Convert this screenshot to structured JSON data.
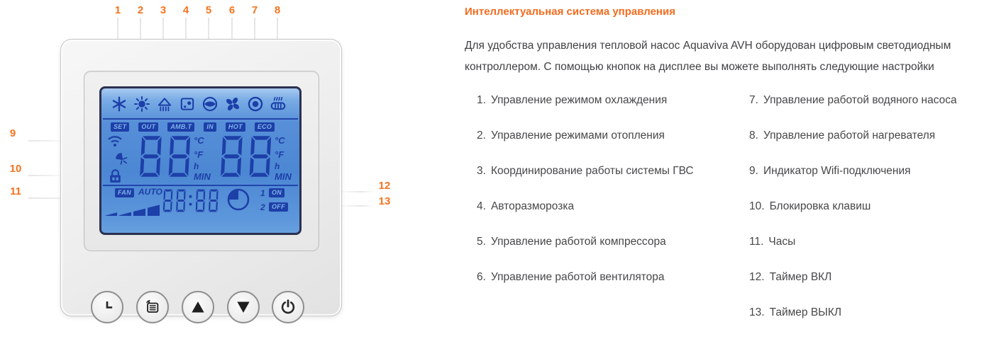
{
  "colors": {
    "accent": "#f4731f",
    "lcd_background": "#4c87d3",
    "lcd_segment": "#1d3fa8",
    "body_text": "#47474a"
  },
  "callouts": {
    "top": [
      "1",
      "2",
      "3",
      "4",
      "5",
      "6",
      "7",
      "8"
    ],
    "left": [
      "9",
      "10",
      "11"
    ],
    "right": [
      "12",
      "13"
    ]
  },
  "device": {
    "display": {
      "mode_icons": [
        "cooling-snowflake",
        "heating-sun",
        "hot-water-shower",
        "auto-defrost",
        "compressor",
        "fan",
        "water-pump",
        "heater"
      ],
      "status_labels": [
        "SET",
        "OUT",
        "AMB.T",
        "IN",
        "HOT",
        "ECO"
      ],
      "indicator_icons": [
        "wifi",
        "satellite-dish",
        "key-lock",
        "timer-clock"
      ],
      "left_value": "88",
      "right_value": "88",
      "left_units": [
        "°C",
        "°F",
        "h",
        "MIN"
      ],
      "right_units": [
        "°C",
        "°F",
        "h",
        "MIN"
      ],
      "fan_label": "FAN",
      "auto_label": "AUTO",
      "clock_value": "88:88",
      "timer_rows": [
        {
          "num": "1",
          "state": "ON"
        },
        {
          "num": "2",
          "state": "OFF"
        }
      ]
    },
    "buttons": [
      "clock",
      "mode",
      "up",
      "down",
      "power"
    ]
  },
  "content": {
    "heading": "Интеллектуальная система управления",
    "intro": "Для удобства управления тепловой насос Aquaviva AVH оборудован цифровым светодиодным контроллером. С помощью кнопок на дисплее вы можете выполнять следующие настройки",
    "features_left": [
      {
        "num": "1.",
        "text": "Управление режимом охлаждения"
      },
      {
        "num": "2.",
        "text": "Управление режимами отопления"
      },
      {
        "num": "3.",
        "text": "Координирование работы системы ГВС"
      },
      {
        "num": "4.",
        "text": "Авторазморозка"
      },
      {
        "num": "5.",
        "text": "Управление работой компрессора"
      },
      {
        "num": "6.",
        "text": "Управление работой вентилятора"
      }
    ],
    "features_right": [
      {
        "num": "7.",
        "text": "Управление работой водяного насоса"
      },
      {
        "num": "8.",
        "text": "Управление работой нагревателя"
      },
      {
        "num": "9.",
        "text": "Индикатор Wifi-подключения"
      },
      {
        "num": "10.",
        "text": "Блокировка клавиш"
      },
      {
        "num": "11.",
        "text": "Часы"
      },
      {
        "num": "12.",
        "text": "Таймер ВКЛ"
      },
      {
        "num": "13.",
        "text": "Таймер ВЫКЛ"
      }
    ]
  }
}
